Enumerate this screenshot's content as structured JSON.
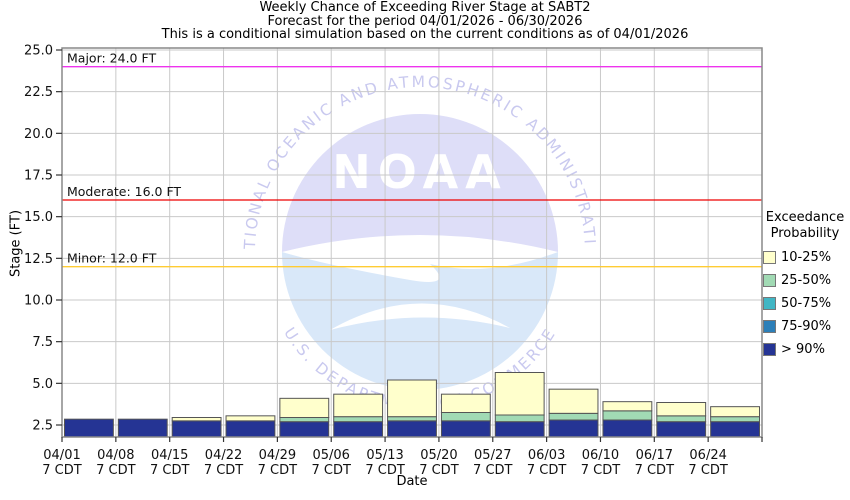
{
  "watermark": {
    "org": "NOAA",
    "ring_top": "NATIONAL OCEANIC AND ATMOSPHERIC ADMINISTRATION",
    "ring_bottom": "U.S. DEPARTMENT OF COMMERCE"
  },
  "chart_data": {
    "type": "bar",
    "stacked": true,
    "title": "Weekly Chance of Exceeding River Stage at SABT2",
    "subtitle": "Forecast for the period 04/01/2026 - 06/30/2026",
    "note": "This is a conditional simulation based on the current conditions as of 04/01/2026",
    "xlabel": "Date",
    "ylabel": "Stage (FT)",
    "ylim": [
      1.78,
      25.12
    ],
    "yticks": [
      2.5,
      5.0,
      7.5,
      10.0,
      12.5,
      15.0,
      17.5,
      20.0,
      22.5,
      25.0
    ],
    "grid": true,
    "categories": [
      "04/01",
      "04/08",
      "04/15",
      "04/22",
      "04/29",
      "05/06",
      "05/13",
      "05/20",
      "05/27",
      "06/03",
      "06/10",
      "06/17",
      "06/24"
    ],
    "tick_sublabel": "7 CDT",
    "series_note": "tops = cumulative stage (FT) of each probability band; stack order bottom-to-top: > 90%, 75-90%, 50-75%, 25-50%, 10-25%",
    "series": [
      {
        "name": "> 90%",
        "color": "#253494",
        "tops": [
          2.85,
          2.85,
          2.75,
          2.75,
          2.7,
          2.7,
          2.75,
          2.75,
          2.7,
          2.8,
          2.8,
          2.7,
          2.7
        ]
      },
      {
        "name": "75-90%",
        "color": "#2C7FB8",
        "tops": [
          2.85,
          2.85,
          2.75,
          2.75,
          2.7,
          2.7,
          2.75,
          2.75,
          2.7,
          2.8,
          2.8,
          2.7,
          2.7
        ]
      },
      {
        "name": "50-75%",
        "color": "#41B6C4",
        "tops": [
          2.85,
          2.85,
          2.75,
          2.75,
          2.7,
          2.7,
          2.75,
          2.75,
          2.7,
          2.8,
          2.8,
          2.7,
          2.7
        ]
      },
      {
        "name": "25-50%",
        "color": "#A1DAB4",
        "tops": [
          2.85,
          2.85,
          2.75,
          2.75,
          2.95,
          3.0,
          3.0,
          3.25,
          3.1,
          3.2,
          3.35,
          3.05,
          3.0
        ]
      },
      {
        "name": "10-25%",
        "color": "#FFFFCC",
        "tops": [
          2.85,
          2.85,
          2.95,
          3.05,
          4.1,
          4.35,
          5.2,
          4.35,
          5.65,
          4.65,
          3.9,
          3.85,
          3.6
        ]
      }
    ],
    "thresholds": [
      {
        "label": "Major: 24.0 FT",
        "value": 24.0,
        "color": "#EE33EE"
      },
      {
        "label": "Moderate: 16.0 FT",
        "value": 16.0,
        "color": "#EE0000"
      },
      {
        "label": "Minor: 12.0 FT",
        "value": 12.0,
        "color": "#FFCC33"
      }
    ],
    "legend": {
      "title_line1": "Exceedance",
      "title_line2": "Probability",
      "position": "right",
      "entries": [
        "10-25%",
        "25-50%",
        "50-75%",
        "75-90%",
        "> 90%"
      ],
      "entry_colors": [
        "#FFFFCC",
        "#A1DAB4",
        "#41B6C4",
        "#2C7FB8",
        "#253494"
      ]
    }
  }
}
